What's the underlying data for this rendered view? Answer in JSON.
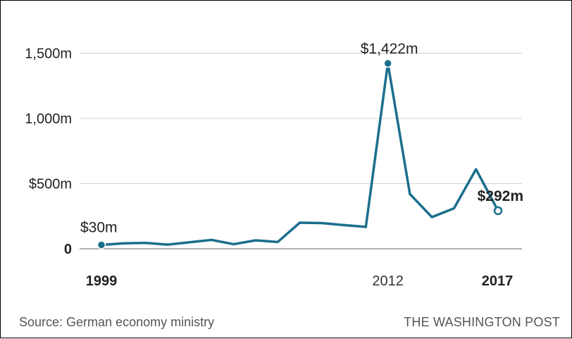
{
  "chart_data": {
    "type": "line",
    "x": [
      1999,
      2000,
      2001,
      2002,
      2003,
      2004,
      2005,
      2006,
      2007,
      2008,
      2009,
      2010,
      2011,
      2012,
      2013,
      2014,
      2015,
      2016,
      2017
    ],
    "values": [
      30,
      42,
      45,
      32,
      50,
      68,
      35,
      65,
      52,
      200,
      197,
      182,
      168,
      1422,
      420,
      243,
      310,
      610,
      292
    ],
    "ylim": [
      0,
      1650
    ],
    "y_ticks": [
      {
        "value": 0,
        "label": "0"
      },
      {
        "value": 500,
        "label": "$500m"
      },
      {
        "value": 1000,
        "label": "1,000m"
      },
      {
        "value": 1500,
        "label": "1,500m"
      }
    ],
    "x_ticks": [
      {
        "value": 1999,
        "label": "1999",
        "bold": true
      },
      {
        "value": 2012,
        "label": "2012",
        "bold": false
      },
      {
        "value": 2017,
        "label": "2017",
        "bold": true
      }
    ],
    "annotations": [
      {
        "x": 1999,
        "y": 30,
        "label": "$30m",
        "marker": "filled",
        "bold": false
      },
      {
        "x": 2012,
        "y": 1422,
        "label": "$1,422m",
        "marker": "filled",
        "bold": false
      },
      {
        "x": 2017,
        "y": 292,
        "label": "$292m",
        "marker": "open",
        "bold": true
      }
    ],
    "line_color": "#1b6f8c",
    "grid_color": "#d4d4d4"
  },
  "footer": {
    "source": "Source: German economy ministry",
    "credit": "THE WASHINGTON POST"
  }
}
